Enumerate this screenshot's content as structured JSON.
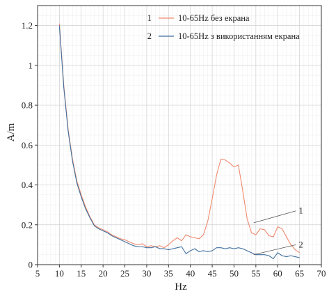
{
  "chart_data": {
    "type": "line",
    "xlabel": "Hz",
    "ylabel": "A/m",
    "xlim": [
      5,
      70
    ],
    "ylim": [
      0,
      1.3
    ],
    "x_ticks": [
      5,
      10,
      15,
      20,
      25,
      30,
      35,
      40,
      45,
      50,
      55,
      60,
      65,
      70
    ],
    "y_ticks": [
      0,
      0.2,
      0.4,
      0.6,
      0.8,
      1.0,
      1.2
    ],
    "y_tick_labels": [
      "0",
      "0.2",
      "0.4",
      "0.6",
      "0.8",
      "1",
      "1.2"
    ],
    "grid": true,
    "legend_placement": "top-right",
    "series": [
      {
        "name": "10-65Hz без екрана",
        "legend_index": "1",
        "color": "#f08a6e",
        "x": [
          10,
          11,
          12,
          13,
          14,
          15,
          16,
          17,
          18,
          19,
          20,
          21,
          22,
          23,
          24,
          25,
          26,
          27,
          28,
          29,
          30,
          31,
          32,
          33,
          34,
          35,
          36,
          37,
          38,
          39,
          40,
          41,
          42,
          43,
          44,
          45,
          46,
          47,
          48,
          49,
          50,
          51,
          52,
          53,
          54,
          55,
          56,
          57,
          58,
          59,
          60,
          61,
          62,
          63,
          64,
          65
        ],
        "y": [
          1.21,
          0.9,
          0.68,
          0.53,
          0.42,
          0.35,
          0.29,
          0.24,
          0.2,
          0.185,
          0.175,
          0.165,
          0.15,
          0.14,
          0.13,
          0.125,
          0.115,
          0.105,
          0.1,
          0.105,
          0.09,
          0.095,
          0.09,
          0.095,
          0.085,
          0.1,
          0.12,
          0.135,
          0.12,
          0.15,
          0.14,
          0.135,
          0.13,
          0.15,
          0.22,
          0.33,
          0.45,
          0.53,
          0.525,
          0.51,
          0.49,
          0.5,
          0.37,
          0.23,
          0.16,
          0.15,
          0.18,
          0.175,
          0.145,
          0.14,
          0.19,
          0.18,
          0.14,
          0.1,
          0.075,
          0.06
        ]
      },
      {
        "name": "10-65Hz з використанням екрана",
        "legend_index": "2",
        "color": "#3f6f9e",
        "x": [
          10,
          11,
          12,
          13,
          14,
          15,
          16,
          17,
          18,
          19,
          20,
          21,
          22,
          23,
          24,
          25,
          26,
          27,
          28,
          29,
          30,
          31,
          32,
          33,
          34,
          35,
          36,
          37,
          38,
          39,
          40,
          41,
          42,
          43,
          44,
          45,
          46,
          47,
          48,
          49,
          50,
          51,
          52,
          53,
          54,
          55,
          56,
          57,
          58,
          59,
          60,
          61,
          62,
          63,
          64,
          65
        ],
        "y": [
          1.2,
          0.89,
          0.67,
          0.52,
          0.41,
          0.34,
          0.28,
          0.235,
          0.195,
          0.18,
          0.17,
          0.16,
          0.145,
          0.135,
          0.125,
          0.115,
          0.105,
          0.095,
          0.09,
          0.09,
          0.085,
          0.085,
          0.09,
          0.08,
          0.08,
          0.075,
          0.08,
          0.085,
          0.09,
          0.055,
          0.07,
          0.08,
          0.065,
          0.07,
          0.065,
          0.07,
          0.085,
          0.085,
          0.08,
          0.085,
          0.08,
          0.085,
          0.08,
          0.07,
          0.06,
          0.05,
          0.05,
          0.05,
          0.045,
          0.03,
          0.06,
          0.045,
          0.04,
          0.045,
          0.04,
          0.035
        ]
      }
    ],
    "annotations": [
      {
        "label": "1",
        "target_series": 0,
        "anchor": [
          54.5,
          0.21
        ],
        "text_at": [
          64.5,
          0.27
        ]
      },
      {
        "label": "2",
        "target_series": 1,
        "anchor": [
          54.5,
          0.05
        ],
        "text_at": [
          64.5,
          0.1
        ]
      }
    ]
  }
}
